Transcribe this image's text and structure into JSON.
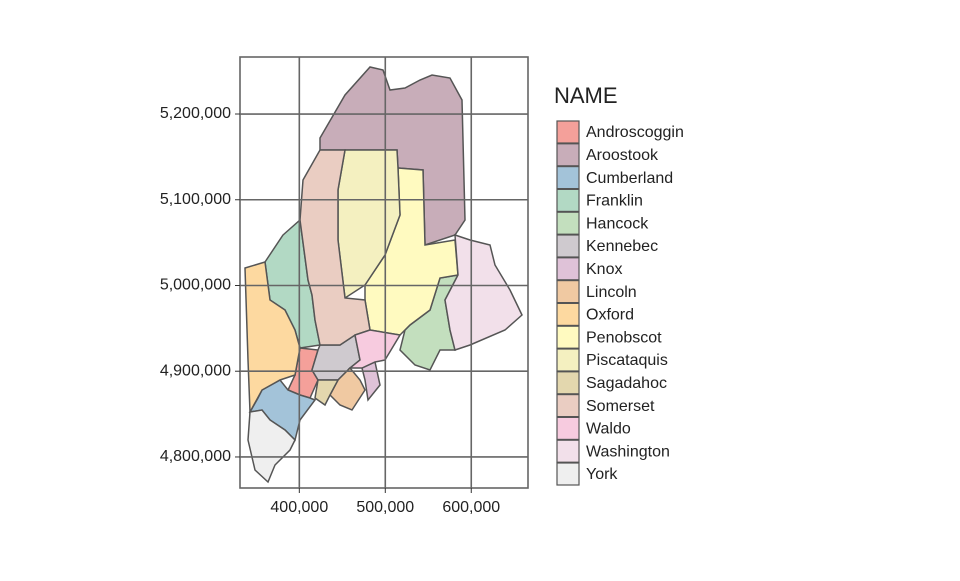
{
  "chart_data": {
    "type": "map",
    "xlim": [
      331000,
      666000
    ],
    "ylim": [
      4763800,
      5266500
    ],
    "xticks": [
      {
        "value": 400000,
        "label": "400,000"
      },
      {
        "value": 500000,
        "label": "500,000"
      },
      {
        "value": 600000,
        "label": "600,000"
      }
    ],
    "yticks": [
      {
        "value": 4800000,
        "label": "4,800,000"
      },
      {
        "value": 4900000,
        "label": "4,900,000"
      },
      {
        "value": 5000000,
        "label": "5,000,000"
      },
      {
        "value": 5100000,
        "label": "5,100,000"
      },
      {
        "value": 5200000,
        "label": "5,200,000"
      }
    ],
    "grid": true,
    "legend_title": "NAME",
    "series": [
      {
        "name": "Androscoggin",
        "color": "#f4a09a"
      },
      {
        "name": "Aroostook",
        "color": "#c8adb9"
      },
      {
        "name": "Cumberland",
        "color": "#a3c3d9"
      },
      {
        "name": "Franklin",
        "color": "#b2d9c4"
      },
      {
        "name": "Hancock",
        "color": "#c3dfbe"
      },
      {
        "name": "Kennebec",
        "color": "#cfcacf"
      },
      {
        "name": "Knox",
        "color": "#dfc2d8"
      },
      {
        "name": "Lincoln",
        "color": "#f0c9a2"
      },
      {
        "name": "Oxford",
        "color": "#fdd9a0"
      },
      {
        "name": "Penobscot",
        "color": "#fffac0"
      },
      {
        "name": "Piscataquis",
        "color": "#f4f0c0"
      },
      {
        "name": "Sagadahoc",
        "color": "#e3d7ae"
      },
      {
        "name": "Somerset",
        "color": "#eacdc2"
      },
      {
        "name": "Waldo",
        "color": "#f7cbdf"
      },
      {
        "name": "Washington",
        "color": "#f2e0ea"
      },
      {
        "name": "York",
        "color": "#efefef"
      }
    ]
  }
}
